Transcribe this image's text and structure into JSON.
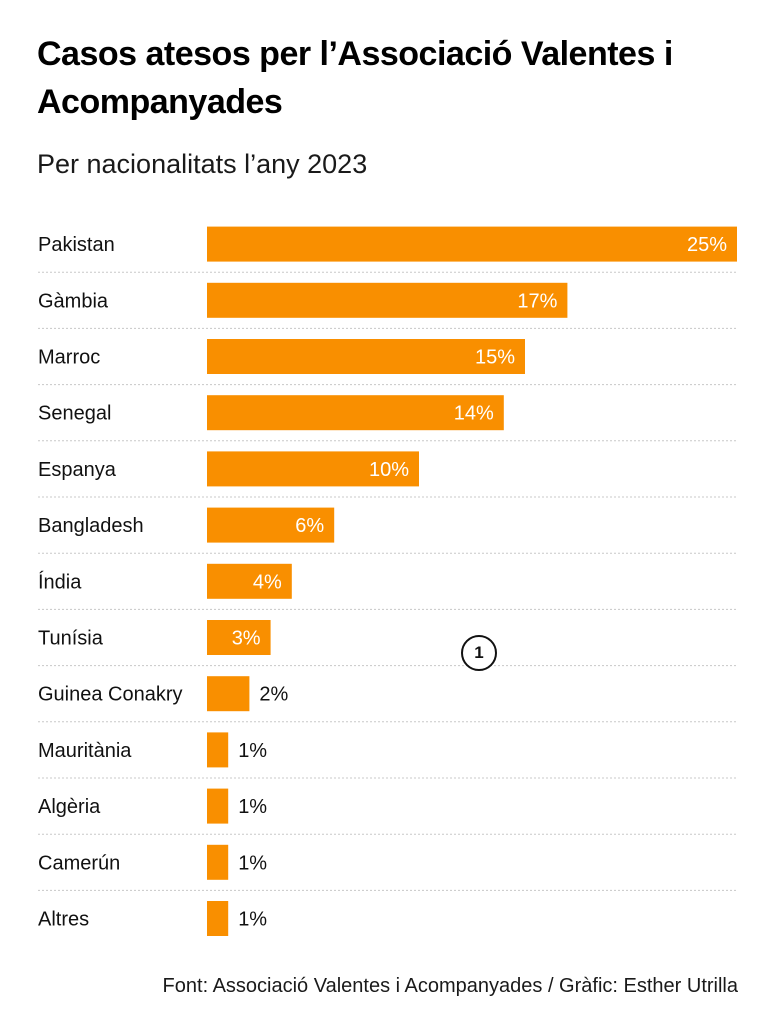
{
  "header": {
    "title": "Casos atesos per l’Associació Valentes i Acompanyades",
    "subtitle": "Per nacionalitats l’any 2023"
  },
  "footer": {
    "source": "Font: Associació Valentes i Acompanyades / Gràfic: Esther Utrilla"
  },
  "marker": {
    "label": "1"
  },
  "colors": {
    "bar": "#f98f00",
    "inside_label": "#ffffff",
    "outside_label": "#111111",
    "category_label": "#111111",
    "divider": "#c8c8c8"
  },
  "chart_data": {
    "type": "bar",
    "orientation": "horizontal",
    "categories": [
      "Pakistan",
      "Gàmbia",
      "Marroc",
      "Senegal",
      "Espanya",
      "Bangladesh",
      "Índia",
      "Tunísia",
      "Guinea Conakry",
      "Mauritània",
      "Algèria",
      "Camerún",
      "Altres"
    ],
    "values": [
      25,
      17,
      15,
      14,
      10,
      6,
      4,
      3,
      2,
      1,
      1,
      1,
      1
    ],
    "value_labels": [
      "25%",
      "17%",
      "15%",
      "14%",
      "10%",
      "6%",
      "4%",
      "3%",
      "2%",
      "1%",
      "1%",
      "1%",
      "1%"
    ],
    "xlim": [
      0,
      25
    ],
    "grid": false,
    "legend": "none",
    "title": "Casos atesos per l’Associació Valentes i Acompanyades",
    "subtitle": "Per nacionalitats l’any 2023"
  }
}
